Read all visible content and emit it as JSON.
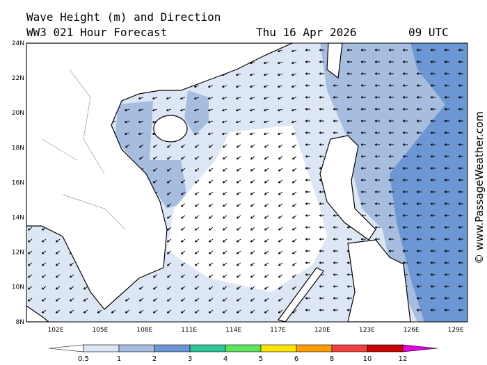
{
  "header": {
    "title": "Wave Height (m) and Direction",
    "subtitle": "WW3 021 Hour Forecast",
    "date": "Thu 16 Apr 2026",
    "time": "09 UTC"
  },
  "map": {
    "lat_labels": [
      "24N",
      "22N",
      "20N",
      "18N",
      "16N",
      "14N",
      "12N",
      "10N",
      "8N"
    ],
    "lon_labels": [
      "102E",
      "105E",
      "108E",
      "111E",
      "114E",
      "117E",
      "120E",
      "123E",
      "126E",
      "129E"
    ]
  },
  "colorbar": {
    "labels": [
      "0.5",
      "1",
      "2",
      "3",
      "4",
      "5",
      "6",
      "8",
      "10",
      "12"
    ],
    "colors": [
      "#ffffff",
      "#dde6f5",
      "#a6bde0",
      "#6d96d4",
      "#2fc59a",
      "#5ee35e",
      "#ffe600",
      "#ff9c00",
      "#f04040",
      "#c80000",
      "#e000e0"
    ]
  },
  "watermark": "© www.PassageWeather.com"
}
